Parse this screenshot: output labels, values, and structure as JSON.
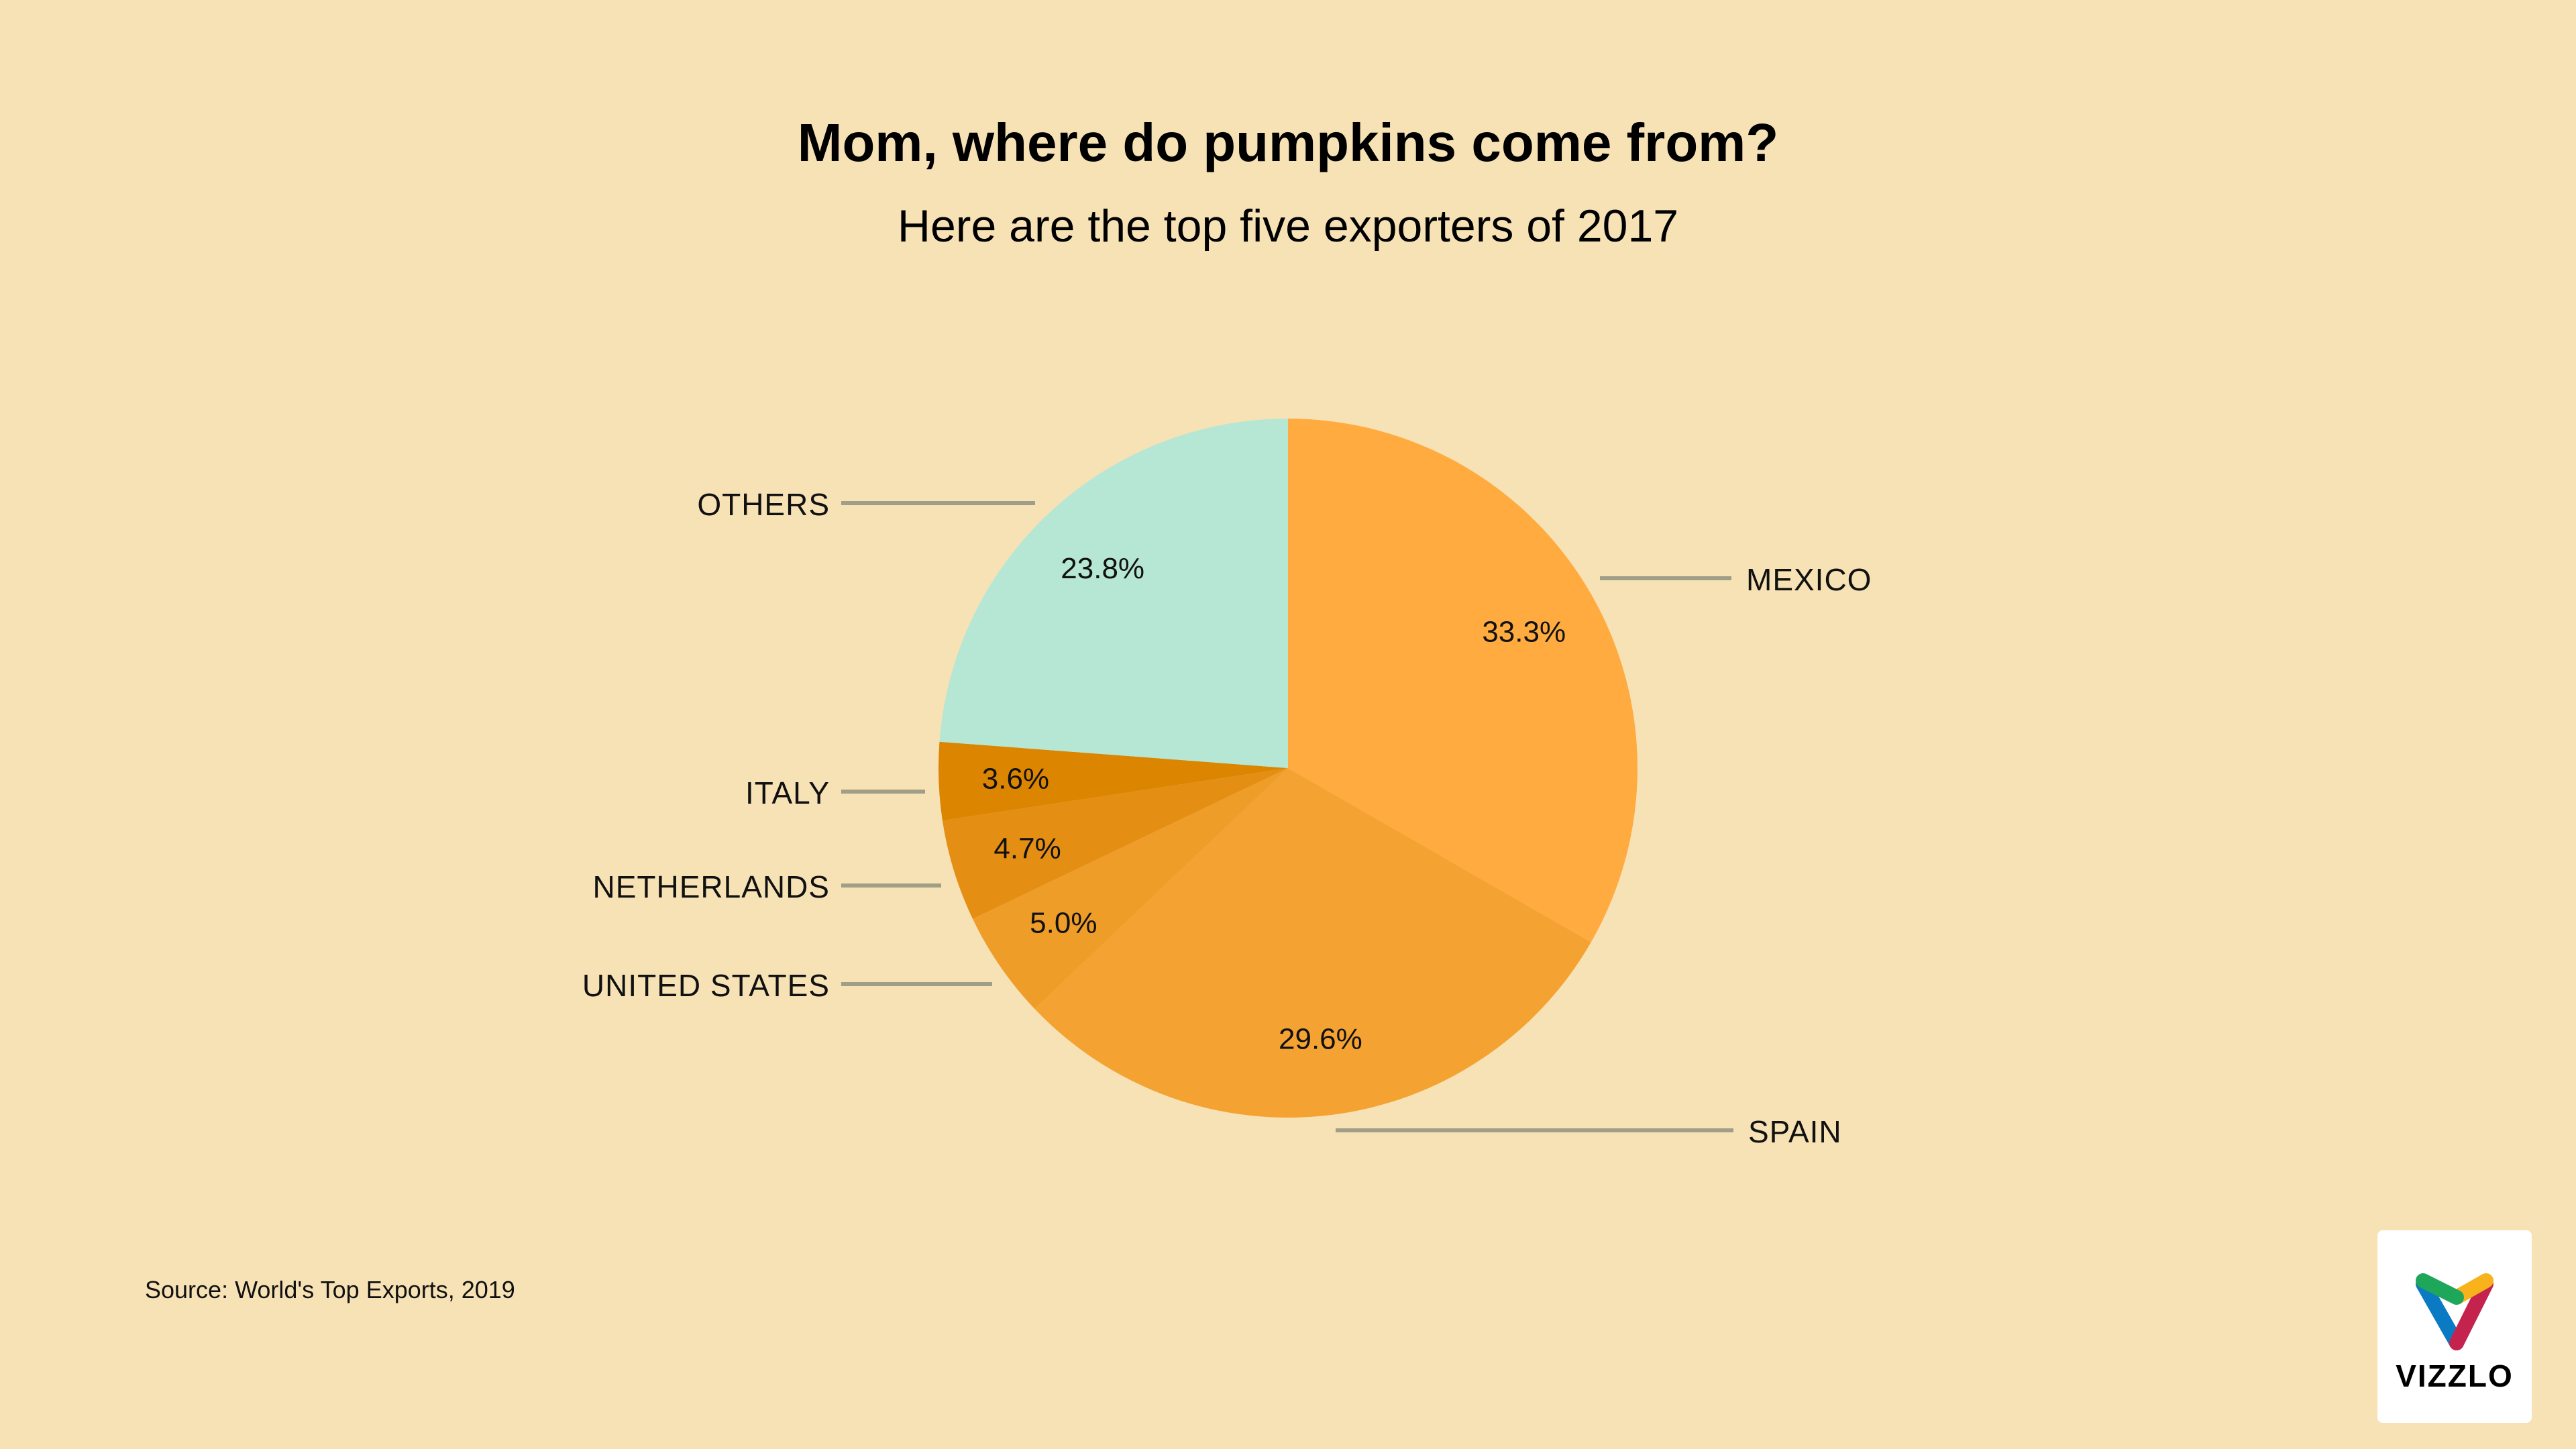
{
  "chart_data": {
    "type": "pie",
    "title": "Mom, where do pumpkins come from?",
    "subtitle": "Here are the top five exporters of 2017",
    "slices": [
      {
        "label": "MEXICO",
        "value": 33.3,
        "value_label": "33.3%",
        "color": "#FFAB40"
      },
      {
        "label": "SPAIN",
        "value": 29.6,
        "value_label": "29.6%",
        "color": "#F4A232"
      },
      {
        "label": "UNITED STATES",
        "value": 5.0,
        "value_label": "5.0%",
        "color": "#EE9D28"
      },
      {
        "label": "NETHERLANDS",
        "value": 4.7,
        "value_label": "4.7%",
        "color": "#E48E14"
      },
      {
        "label": "ITALY",
        "value": 3.6,
        "value_label": "3.6%",
        "color": "#DB8500"
      },
      {
        "label": "OTHERS",
        "value": 23.8,
        "value_label": "23.8%",
        "color": "#B6E6D4"
      }
    ],
    "start": "top",
    "direction": "clockwise",
    "source": "Source: World's Top Exports, 2019"
  },
  "colors": {
    "background": "#F7E2B5",
    "leader_line": "#A09E86"
  },
  "logo": {
    "text": "VIZZLO"
  }
}
